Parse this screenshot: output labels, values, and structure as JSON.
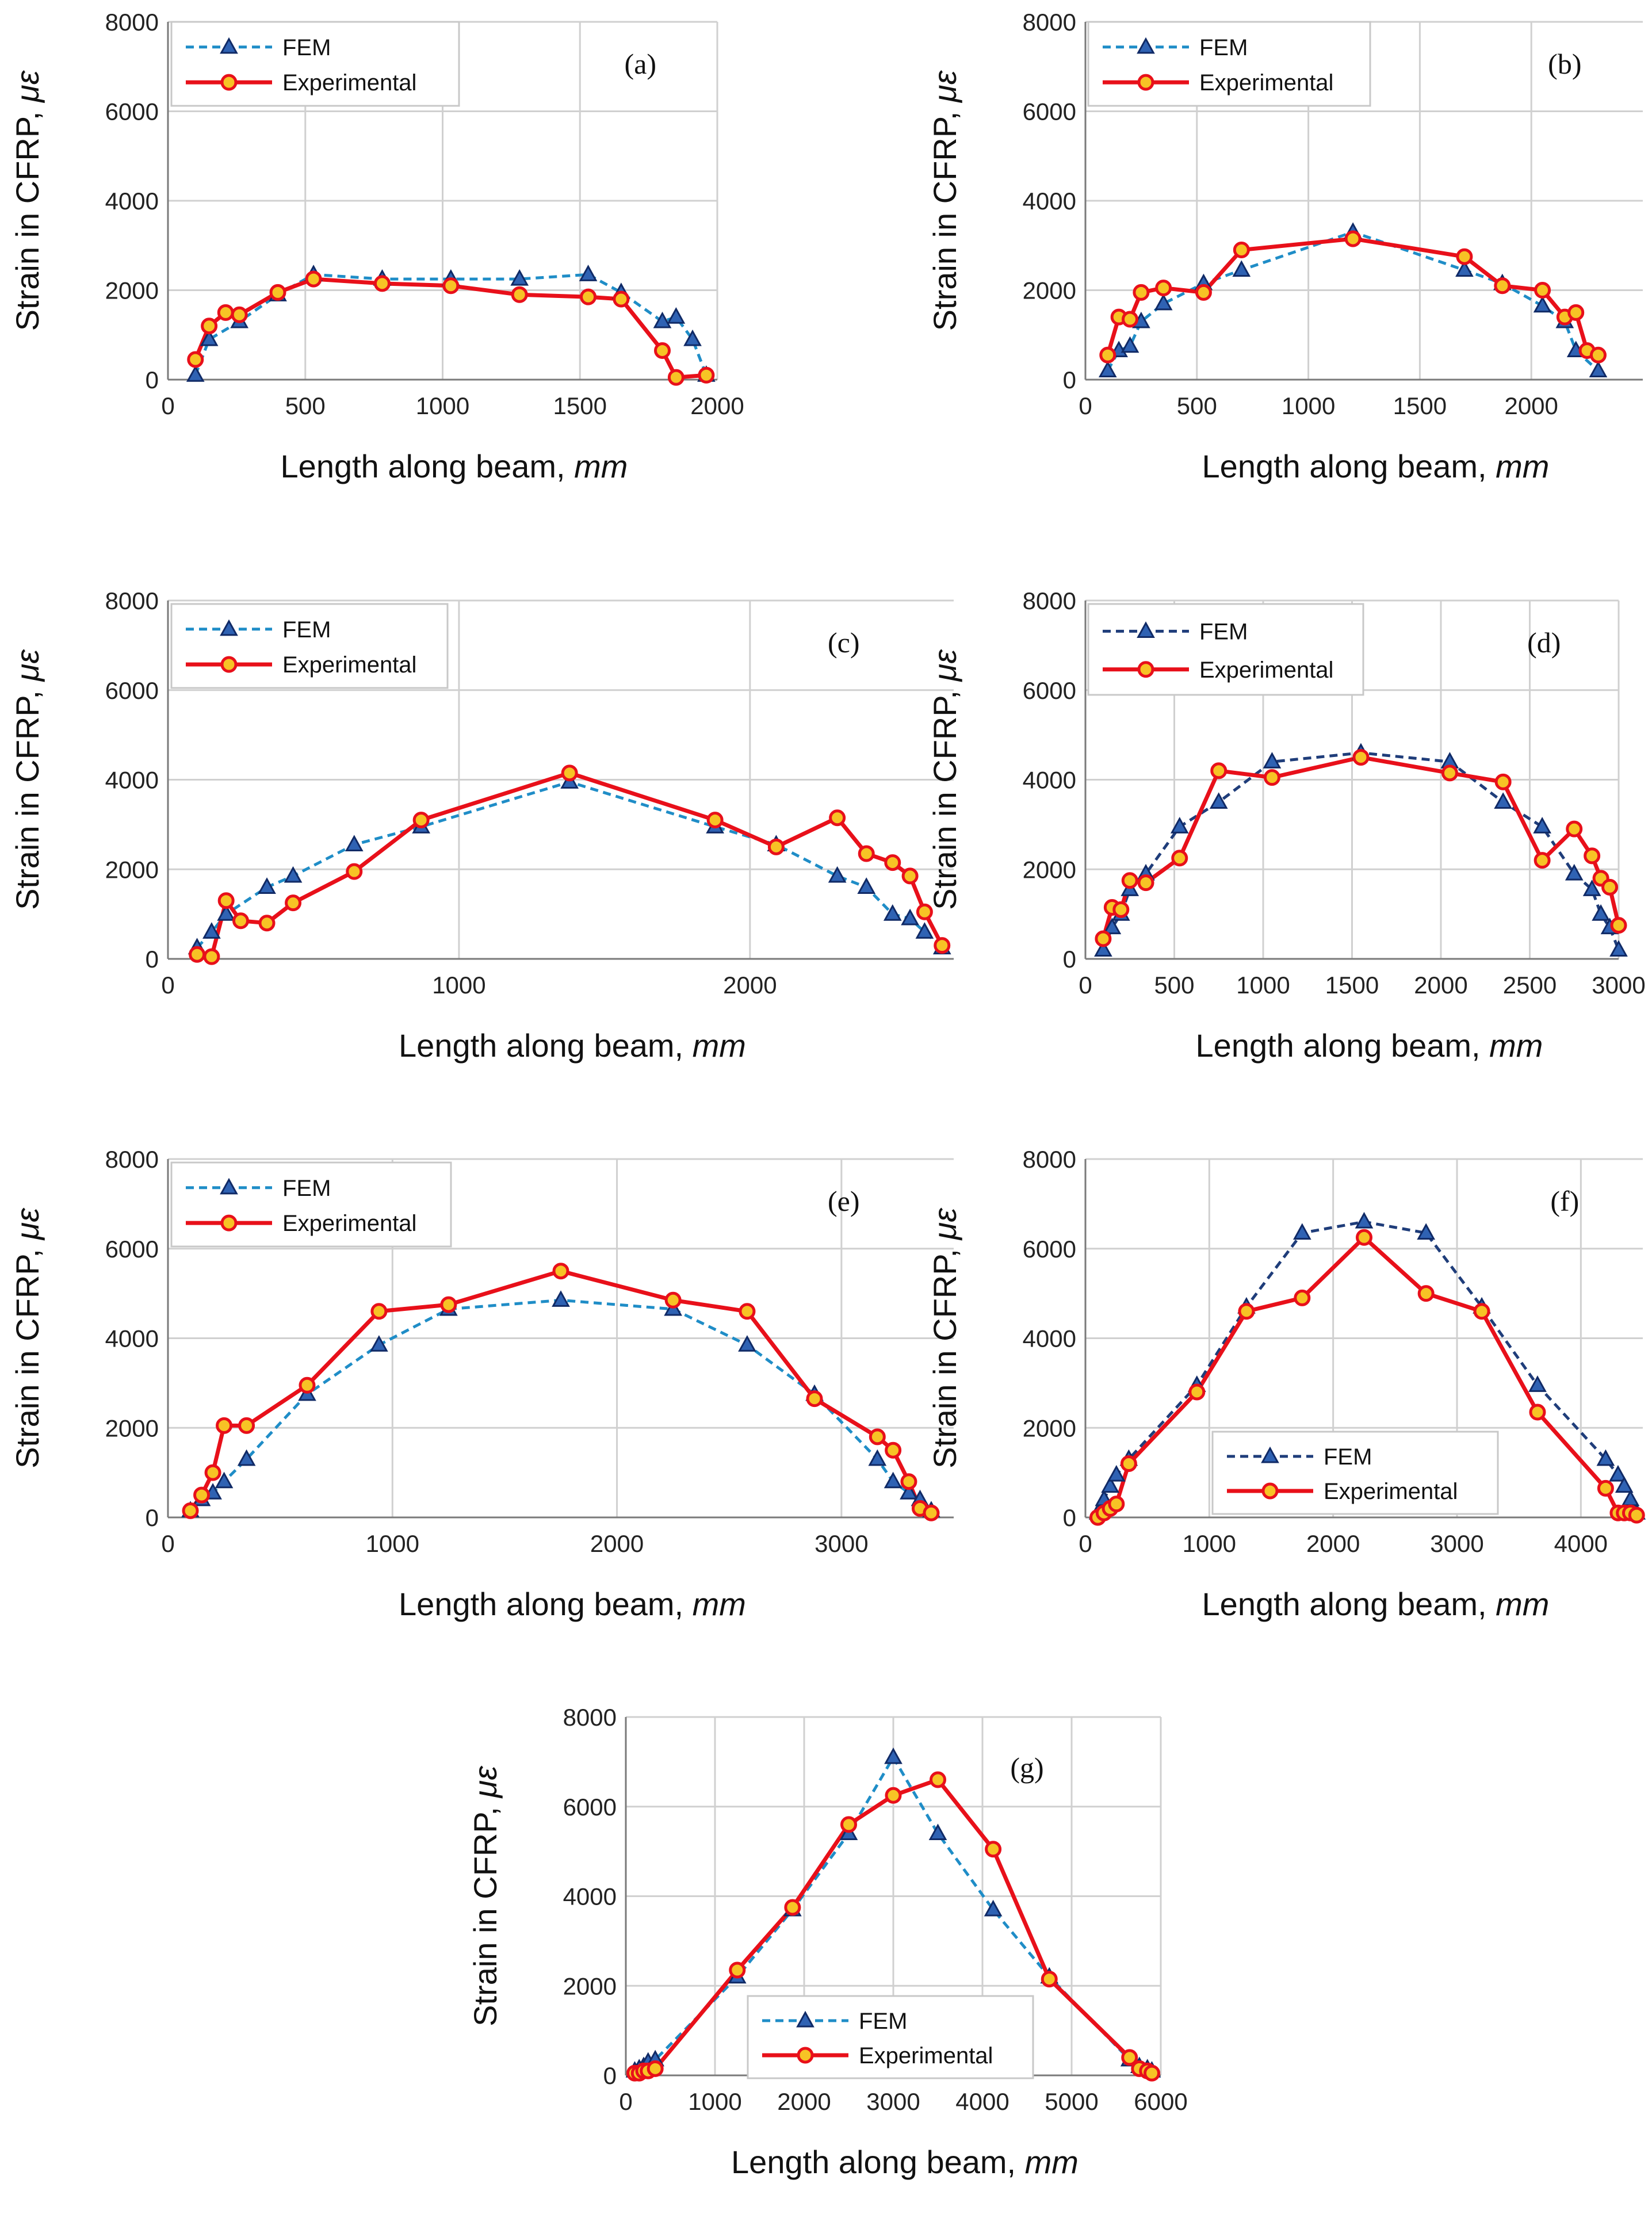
{
  "axis_text": {
    "xlabel_main": "Length along beam, ",
    "xlabel_unit": "mm",
    "ylabel_main": "Strain in CFRP, ",
    "ylabel_unit": "με"
  },
  "legend": {
    "fem": "FEM",
    "experimental": "Experimental"
  },
  "colors": {
    "fem_dark_blue": "#1f3d7a",
    "fem_light_blue": "#1f8dc7",
    "experimental_red": "#e8101a",
    "experimental_marker_fill": "#f7c325"
  },
  "chart_data": [
    {
      "type": "line",
      "panel_label": "(a)",
      "xlim": [
        0,
        2000
      ],
      "ylim": [
        0,
        8000
      ],
      "xticks": [
        "0",
        "500",
        "1000",
        "1500",
        "2000"
      ],
      "yticks": [
        "0",
        "2000",
        "4000",
        "6000",
        "8000"
      ],
      "grid": true,
      "legend_position": "top-left",
      "series": [
        {
          "name": "FEM",
          "style": "dashed",
          "marker": "triangle",
          "x": [
            100,
            150,
            260,
            400,
            530,
            780,
            1030,
            1280,
            1530,
            1650,
            1800,
            1850,
            1910,
            1960
          ],
          "y": [
            100,
            900,
            1300,
            1900,
            2350,
            2250,
            2250,
            2250,
            2350,
            1950,
            1300,
            1400,
            900,
            100
          ]
        },
        {
          "name": "Experimental",
          "style": "solid",
          "marker": "circle",
          "x": [
            100,
            150,
            210,
            260,
            400,
            530,
            780,
            1030,
            1280,
            1530,
            1650,
            1800,
            1850,
            1960
          ],
          "y": [
            450,
            1200,
            1500,
            1450,
            1950,
            2250,
            2150,
            2100,
            1900,
            1850,
            1800,
            650,
            50,
            100
          ]
        }
      ]
    },
    {
      "type": "line",
      "panel_label": "(b)",
      "xlim": [
        0,
        2500
      ],
      "ylim": [
        0,
        8000
      ],
      "xticks": [
        "0",
        "500",
        "1000",
        "1500",
        "2000"
      ],
      "yticks": [
        "0",
        "2000",
        "4000",
        "6000",
        "8000"
      ],
      "grid": true,
      "legend_position": "top-left",
      "series": [
        {
          "name": "FEM",
          "style": "dashed",
          "marker": "triangle",
          "x": [
            100,
            150,
            200,
            250,
            350,
            530,
            700,
            1200,
            1700,
            1870,
            2050,
            2150,
            2200,
            2300
          ],
          "y": [
            200,
            650,
            750,
            1300,
            1700,
            2150,
            2450,
            3300,
            2450,
            2150,
            1650,
            1300,
            650,
            200
          ]
        },
        {
          "name": "Experimental",
          "style": "solid",
          "marker": "circle",
          "x": [
            100,
            150,
            200,
            250,
            350,
            530,
            700,
            1200,
            1700,
            1870,
            2050,
            2150,
            2200,
            2250,
            2300
          ],
          "y": [
            550,
            1400,
            1350,
            1950,
            2050,
            1950,
            2900,
            3150,
            2750,
            2100,
            2000,
            1400,
            1500,
            650,
            550
          ]
        }
      ]
    },
    {
      "type": "line",
      "panel_label": "(c)",
      "xlim": [
        0,
        2700
      ],
      "ylim": [
        0,
        8000
      ],
      "xticks": [
        "0",
        "1000",
        "2000"
      ],
      "yticks": [
        "0",
        "2000",
        "4000",
        "6000",
        "8000"
      ],
      "grid": true,
      "legend_position": "top-left",
      "series": [
        {
          "name": "FEM",
          "style": "dashed",
          "marker": "triangle",
          "x": [
            100,
            150,
            200,
            340,
            430,
            640,
            870,
            1380,
            1880,
            2090,
            2300,
            2400,
            2490,
            2550,
            2600,
            2660
          ],
          "y": [
            250,
            600,
            1000,
            1600,
            1850,
            2550,
            2950,
            3950,
            2950,
            2550,
            1850,
            1600,
            1000,
            900,
            600,
            250
          ]
        },
        {
          "name": "Experimental",
          "style": "solid",
          "marker": "circle",
          "x": [
            100,
            150,
            200,
            250,
            340,
            430,
            640,
            870,
            1380,
            1880,
            2090,
            2300,
            2400,
            2490,
            2550,
            2600,
            2660
          ],
          "y": [
            100,
            50,
            1300,
            850,
            800,
            1250,
            1950,
            3100,
            4150,
            3100,
            2500,
            3150,
            2350,
            2150,
            1850,
            1050,
            300
          ]
        }
      ]
    },
    {
      "type": "line",
      "panel_label": "(d)",
      "xlim": [
        0,
        3000
      ],
      "ylim": [
        0,
        8000
      ],
      "xticks": [
        "0",
        "500",
        "1000",
        "1500",
        "2000",
        "2500",
        "3000"
      ],
      "yticks": [
        "0",
        "2000",
        "4000",
        "6000",
        "8000"
      ],
      "grid": true,
      "legend_position": "top-left",
      "series": [
        {
          "name": "FEM",
          "style": "dashed",
          "marker": "triangle",
          "x": [
            100,
            150,
            200,
            250,
            340,
            530,
            750,
            1050,
            1550,
            2050,
            2350,
            2570,
            2750,
            2850,
            2900,
            2950,
            3000
          ],
          "y": [
            200,
            700,
            1000,
            1550,
            1900,
            2950,
            3500,
            4400,
            4600,
            4400,
            3500,
            2950,
            1900,
            1550,
            1000,
            700,
            200
          ]
        },
        {
          "name": "Experimental",
          "style": "solid",
          "marker": "circle",
          "x": [
            100,
            150,
            200,
            250,
            340,
            530,
            750,
            1050,
            1550,
            2050,
            2350,
            2570,
            2750,
            2850,
            2900,
            2950,
            3000
          ],
          "y": [
            450,
            1150,
            1100,
            1750,
            1700,
            2250,
            4200,
            4050,
            4500,
            4150,
            3950,
            2200,
            2900,
            2300,
            1800,
            1600,
            750
          ]
        }
      ]
    },
    {
      "type": "line",
      "panel_label": "(e)",
      "xlim": [
        0,
        3500
      ],
      "ylim": [
        0,
        8000
      ],
      "xticks": [
        "0",
        "1000",
        "2000",
        "3000"
      ],
      "yticks": [
        "0",
        "2000",
        "4000",
        "6000",
        "8000"
      ],
      "grid": true,
      "legend_position": "top-left",
      "series": [
        {
          "name": "FEM",
          "style": "dashed",
          "marker": "triangle",
          "x": [
            100,
            150,
            200,
            250,
            350,
            620,
            940,
            1250,
            1750,
            2250,
            2580,
            2880,
            3160,
            3230,
            3300,
            3350,
            3400
          ],
          "y": [
            150,
            400,
            550,
            800,
            1300,
            2750,
            3850,
            4650,
            4850,
            4650,
            3850,
            2750,
            1300,
            800,
            550,
            400,
            150
          ]
        },
        {
          "name": "Experimental",
          "style": "solid",
          "marker": "circle",
          "x": [
            100,
            150,
            200,
            250,
            350,
            620,
            940,
            1250,
            1750,
            2250,
            2580,
            2880,
            3160,
            3230,
            3300,
            3350,
            3400
          ],
          "y": [
            150,
            500,
            1000,
            2050,
            2050,
            2950,
            4600,
            4750,
            5500,
            4850,
            4600,
            2650,
            1800,
            1500,
            800,
            200,
            100
          ]
        }
      ]
    },
    {
      "type": "line",
      "panel_label": "(f)",
      "xlim": [
        0,
        4500
      ],
      "ylim": [
        0,
        8000
      ],
      "xticks": [
        "0",
        "1000",
        "2000",
        "3000",
        "4000"
      ],
      "yticks": [
        "0",
        "2000",
        "4000",
        "6000",
        "8000"
      ],
      "grid": true,
      "legend_position": "bottom-center",
      "series": [
        {
          "name": "FEM",
          "style": "dashed",
          "marker": "triangle",
          "x": [
            100,
            150,
            200,
            250,
            350,
            900,
            1300,
            1750,
            2250,
            2750,
            3200,
            3650,
            4200,
            4300,
            4350,
            4400,
            4450
          ],
          "y": [
            100,
            400,
            700,
            950,
            1300,
            2950,
            4700,
            6350,
            6600,
            6350,
            4700,
            2950,
            1300,
            950,
            700,
            400,
            100
          ]
        },
        {
          "name": "Experimental",
          "style": "solid",
          "marker": "circle",
          "x": [
            100,
            150,
            200,
            250,
            350,
            900,
            1300,
            1750,
            2250,
            2750,
            3200,
            3650,
            4200,
            4300,
            4350,
            4400,
            4450
          ],
          "y": [
            0,
            100,
            200,
            300,
            1200,
            2800,
            4600,
            4900,
            6250,
            5000,
            4600,
            2350,
            650,
            100,
            100,
            100,
            50
          ]
        }
      ]
    },
    {
      "type": "line",
      "panel_label": "(g)",
      "xlim": [
        0,
        6000
      ],
      "ylim": [
        0,
        8000
      ],
      "xticks": [
        "0",
        "1000",
        "2000",
        "3000",
        "4000",
        "5000",
        "6000"
      ],
      "yticks": [
        "0",
        "2000",
        "4000",
        "6000",
        "8000"
      ],
      "grid": true,
      "legend_position": "bottom-center",
      "series": [
        {
          "name": "FEM",
          "style": "dashed",
          "marker": "triangle",
          "x": [
            100,
            150,
            200,
            250,
            330,
            1250,
            1870,
            2500,
            3000,
            3500,
            4120,
            4750,
            5650,
            5760,
            5850,
            5900
          ],
          "y": [
            100,
            150,
            200,
            300,
            350,
            2200,
            3700,
            5400,
            7100,
            5400,
            3700,
            2200,
            350,
            200,
            150,
            100
          ]
        },
        {
          "name": "Experimental",
          "style": "solid",
          "marker": "circle",
          "x": [
            100,
            150,
            200,
            250,
            330,
            1250,
            1870,
            2500,
            3000,
            3500,
            4120,
            4750,
            5650,
            5760,
            5850,
            5900
          ],
          "y": [
            50,
            50,
            100,
            100,
            150,
            2350,
            3750,
            5600,
            6250,
            6600,
            5050,
            2150,
            400,
            150,
            100,
            50
          ]
        }
      ]
    }
  ]
}
